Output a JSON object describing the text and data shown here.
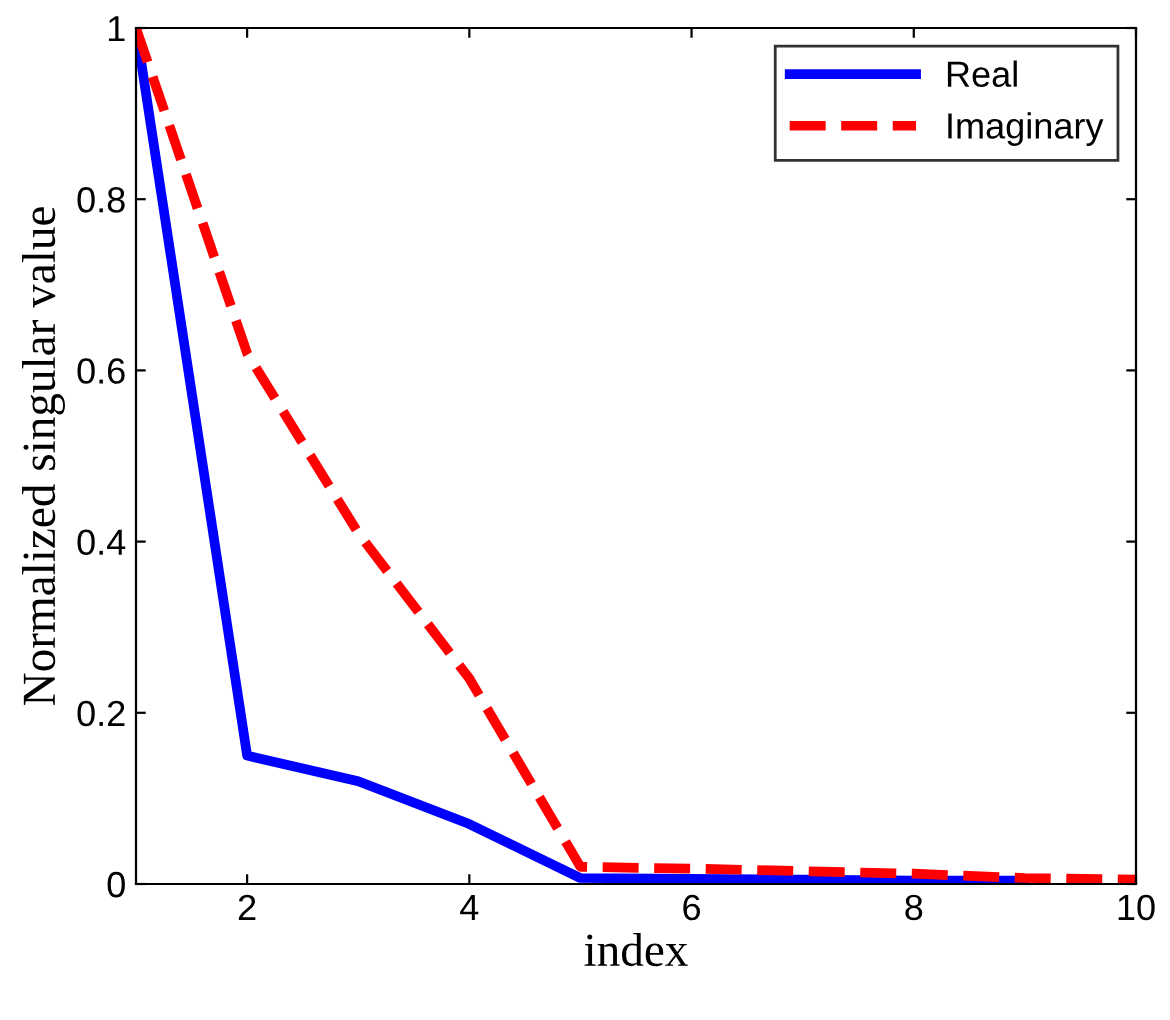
{
  "chart_data": {
    "type": "line",
    "xlabel": "index",
    "ylabel": "Normalized singular value",
    "x": [
      1,
      2,
      3,
      4,
      5,
      6,
      7,
      8,
      9,
      10
    ],
    "series": [
      {
        "name": "Real",
        "color": "#0000ff",
        "line_style": "solid",
        "values": [
          1,
          0.15,
          0.12,
          0.07,
          0.007,
          0.006,
          0.005,
          0.004,
          0.004,
          null
        ]
      },
      {
        "name": "Imaginary",
        "color": "#ff0000",
        "line_style": "dashed",
        "values": [
          1,
          0.62,
          0.41,
          0.24,
          0.02,
          0.018,
          0.015,
          0.012,
          0.007,
          0.005
        ]
      }
    ],
    "xlim": [
      1,
      10
    ],
    "ylim": [
      0,
      1
    ],
    "xticks": [
      2,
      4,
      6,
      8,
      10
    ],
    "yticks": [
      0,
      0.2,
      0.4,
      0.6,
      0.8,
      1
    ],
    "grid": false,
    "legend": "top right",
    "marker": "none"
  }
}
